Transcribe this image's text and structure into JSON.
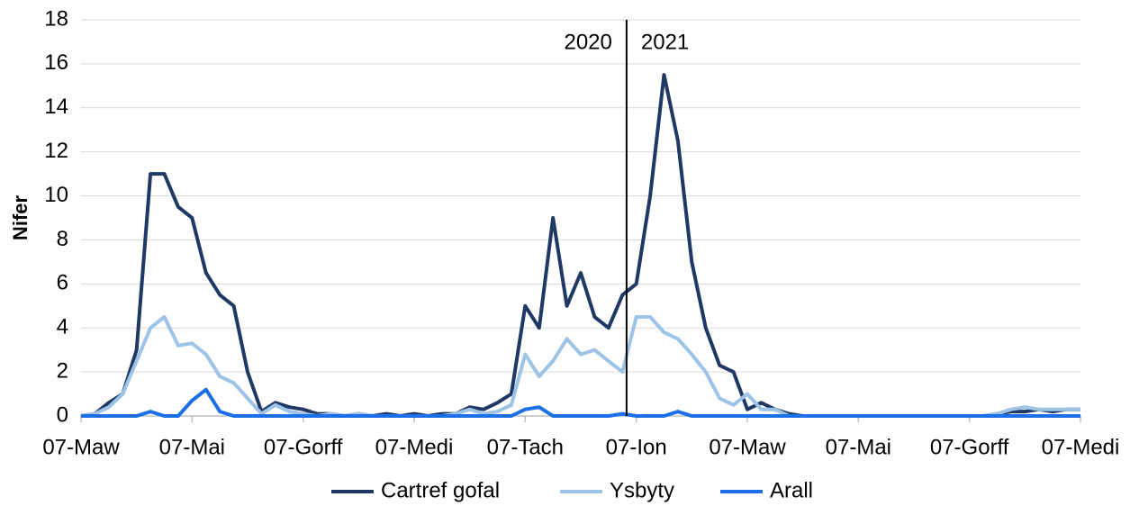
{
  "chart_data": {
    "type": "line",
    "ylabel": "Nifer",
    "categories": [
      "07-Maw",
      null,
      null,
      null,
      null,
      null,
      null,
      null,
      "07-Mai",
      null,
      null,
      null,
      null,
      null,
      null,
      null,
      "07-Gorff",
      null,
      null,
      null,
      null,
      null,
      null,
      null,
      "07-Medi",
      null,
      null,
      null,
      null,
      null,
      null,
      null,
      "07-Tach",
      null,
      null,
      null,
      null,
      null,
      null,
      null,
      "07-Ion",
      null,
      null,
      null,
      null,
      null,
      null,
      null,
      "07-Maw",
      null,
      null,
      null,
      null,
      null,
      null,
      null,
      "07-Mai",
      null,
      null,
      null,
      null,
      null,
      null,
      null,
      "07-Gorff",
      null,
      null,
      null,
      null,
      null,
      null,
      null,
      "07-Medi"
    ],
    "series": [
      {
        "name": "Cartref gofal",
        "color": "#1f3864",
        "values": [
          0,
          0.1,
          0.6,
          1,
          3,
          11,
          11,
          9.5,
          9,
          6.5,
          5.5,
          5,
          2,
          0.2,
          0.6,
          0.4,
          0.3,
          0.1,
          0.1,
          0,
          0.1,
          0,
          0.1,
          0,
          0.1,
          0,
          0.1,
          0.1,
          0.4,
          0.3,
          0.6,
          1,
          5,
          4,
          9,
          5,
          6.5,
          4.5,
          4,
          5.5,
          6,
          10,
          15.5,
          12.5,
          7,
          4,
          2.3,
          2,
          0.3,
          0.6,
          0.3,
          0.1,
          0,
          0,
          0,
          0,
          0,
          0,
          0,
          0,
          0,
          0,
          0,
          0,
          0,
          0,
          0.1,
          0.2,
          0.2,
          0.3,
          0.2,
          0.3,
          0.3
        ]
      },
      {
        "name": "Ysbyty",
        "color": "#9dc3e6",
        "values": [
          0,
          0.1,
          0.4,
          1,
          2.5,
          4,
          4.5,
          3.2,
          3.3,
          2.8,
          1.8,
          1.5,
          0.8,
          0.1,
          0.5,
          0.2,
          0.1,
          0,
          0.1,
          0,
          0.1,
          0,
          0,
          0,
          0,
          0,
          0,
          0.1,
          0.3,
          0.1,
          0.2,
          0.5,
          2.8,
          1.8,
          2.5,
          3.5,
          2.8,
          3,
          2.5,
          2,
          4.5,
          4.5,
          3.8,
          3.5,
          2.8,
          2,
          0.8,
          0.5,
          1,
          0.3,
          0.3,
          0,
          0,
          0,
          0,
          0,
          0,
          0,
          0,
          0,
          0,
          0,
          0,
          0,
          0,
          0,
          0.1,
          0.3,
          0.4,
          0.3,
          0.3,
          0.3,
          0.3
        ]
      },
      {
        "name": "Arall",
        "color": "#1c6fe6",
        "values": [
          0,
          0,
          0,
          0,
          0,
          0.2,
          0,
          0,
          0.7,
          1.2,
          0.2,
          0,
          0,
          0,
          0,
          0,
          0,
          0,
          0,
          0,
          0,
          0,
          0,
          0,
          0,
          0,
          0,
          0,
          0,
          0,
          0,
          0,
          0.3,
          0.4,
          0,
          0,
          0,
          0,
          0,
          0.1,
          0,
          0,
          0,
          0.2,
          0,
          0,
          0,
          0,
          0,
          0,
          0,
          0,
          0,
          0,
          0,
          0,
          0,
          0,
          0,
          0,
          0,
          0,
          0,
          0,
          0,
          0,
          0,
          0,
          0,
          0,
          0,
          0,
          0
        ]
      }
    ],
    "ylim": [
      0,
      18
    ],
    "yticks": [
      0,
      2,
      4,
      6,
      8,
      10,
      12,
      14,
      16,
      18
    ],
    "grid": true,
    "divider": {
      "index": 39.3,
      "left_label": "2020",
      "right_label": "2021"
    },
    "legend": "bottom"
  }
}
